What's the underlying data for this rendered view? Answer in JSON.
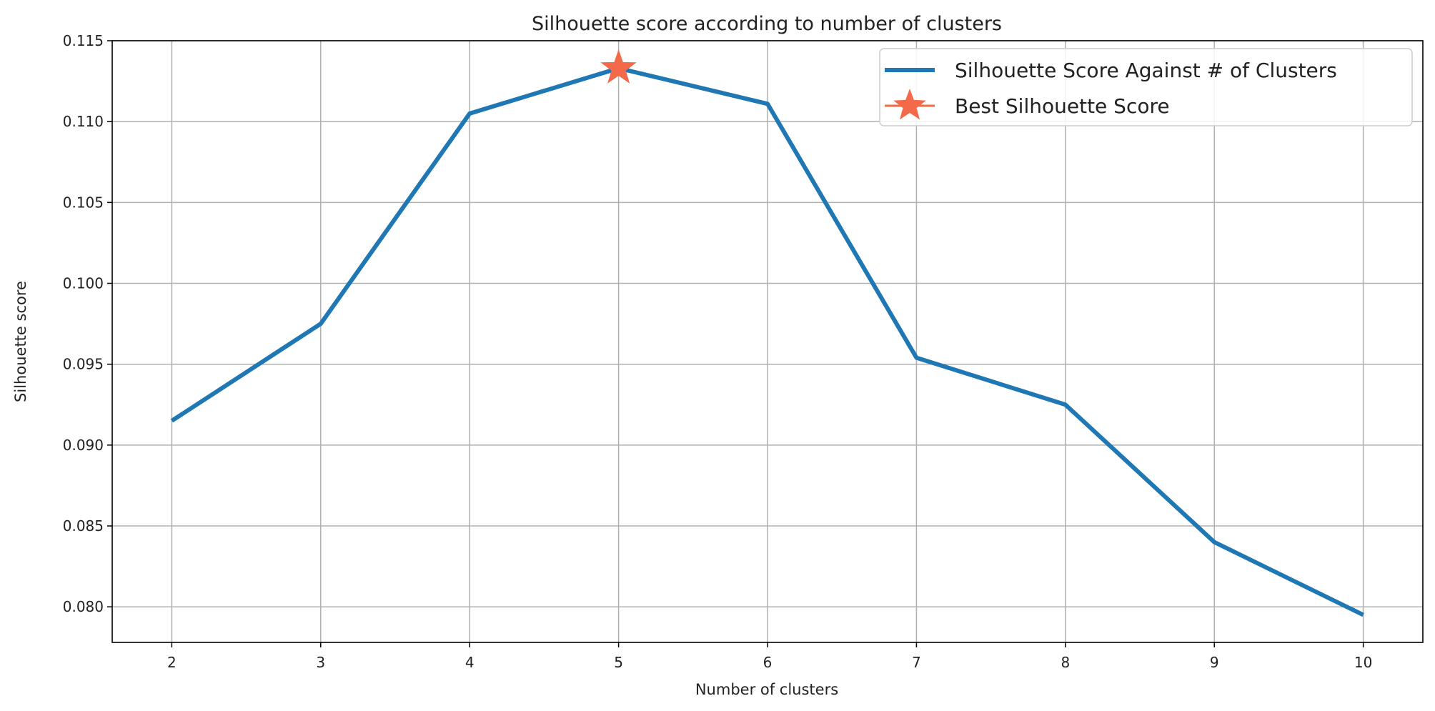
{
  "chart_data": {
    "type": "line",
    "title": "Silhouette score according to number of clusters",
    "xlabel": "Number of clusters",
    "ylabel": "Silhouette score",
    "x": [
      2,
      3,
      4,
      5,
      6,
      7,
      8,
      9,
      10
    ],
    "x_tick_labels": [
      "2",
      "3",
      "4",
      "5",
      "6",
      "7",
      "8",
      "9",
      "10"
    ],
    "xlim": [
      1.6,
      10.4
    ],
    "ylim": [
      0.0778,
      0.115
    ],
    "y_ticks": [
      0.08,
      0.085,
      0.09,
      0.095,
      0.1,
      0.105,
      0.11,
      0.115
    ],
    "y_tick_labels": [
      "0.080",
      "0.085",
      "0.090",
      "0.095",
      "0.100",
      "0.105",
      "0.110",
      "0.115"
    ],
    "grid": true,
    "legend_position": "top-right",
    "series": [
      {
        "name": "Silhouette Score Against # of Clusters",
        "color": "#1f77b4",
        "marker": "line",
        "values": [
          0.0915,
          0.0975,
          0.1105,
          0.1133,
          0.1111,
          0.0954,
          0.0925,
          0.084,
          0.0795
        ]
      },
      {
        "name": "Best Silhouette Score",
        "color": "#f4694a",
        "marker": "star",
        "points": [
          {
            "x": 5,
            "y": 0.1133
          }
        ]
      }
    ]
  }
}
